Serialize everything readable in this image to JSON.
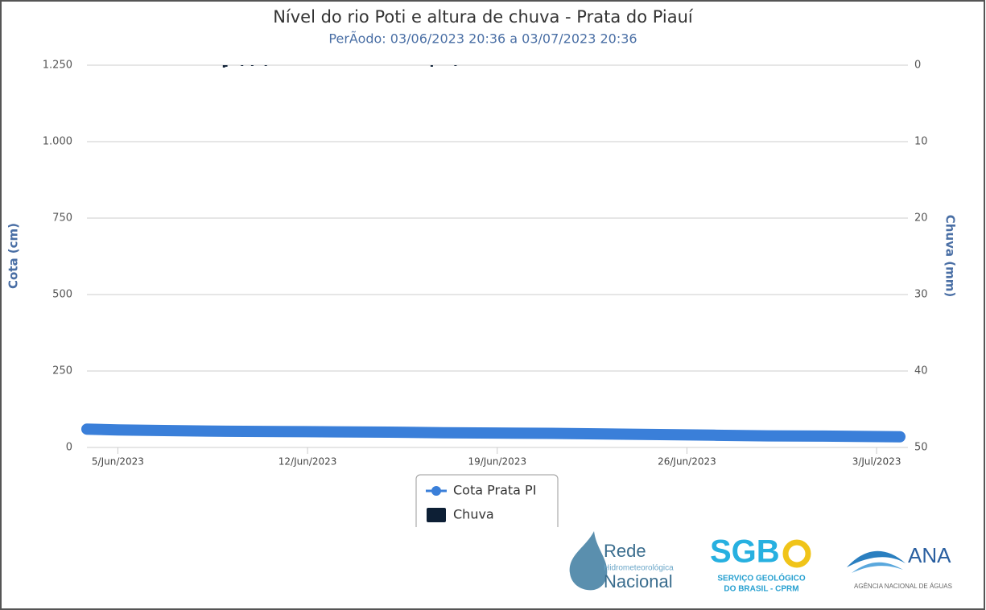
{
  "chart_data": {
    "type": "line-bar",
    "title": "Nível do rio Poti e altura de chuva - Prata do Piauí",
    "subtitle": "PerÃodo: 03/06/2023 20:36 a 03/07/2023 20:36",
    "ylabel": "Cota (cm)",
    "y2label": "Chuva (mm)",
    "xlim": [
      "2023-06-03T20:36",
      "2023-07-03T20:36"
    ],
    "xticks": [
      {
        "value": "2023-06-05T00:00",
        "label": "5/Jun/2023"
      },
      {
        "value": "2023-06-12T00:00",
        "label": "12/Jun/2023"
      },
      {
        "value": "2023-06-19T00:00",
        "label": "19/Jun/2023"
      },
      {
        "value": "2023-06-26T00:00",
        "label": "26/Jun/2023"
      },
      {
        "value": "2023-07-03T00:00",
        "label": "3/Jul/2023"
      }
    ],
    "ylim": [
      0,
      1250
    ],
    "yticks": [
      0,
      250,
      500,
      750,
      {
        "value": 1000,
        "label": "1.000"
      },
      {
        "value": 1250,
        "label": "1.250"
      }
    ],
    "y2lim": [
      0,
      50
    ],
    "y2ticks": [
      0,
      10,
      20,
      30,
      40,
      50
    ],
    "y2reverse": true,
    "grid": true,
    "series": [
      {
        "name": "Cota Prata PI",
        "color": "#3a7fd9",
        "kind": "line",
        "x": [
          "2023-06-03T20:36",
          "2023-06-05T00:00",
          "2023-06-07T00:00",
          "2023-06-09T00:00",
          "2023-06-11T00:00",
          "2023-06-13T00:00",
          "2023-06-15T00:00",
          "2023-06-17T00:00",
          "2023-06-19T00:00",
          "2023-06-21T00:00",
          "2023-06-23T00:00",
          "2023-06-25T00:00",
          "2023-06-27T00:00",
          "2023-06-29T00:00",
          "2023-07-01T00:00",
          "2023-07-03T20:36"
        ],
        "values": [
          60,
          57,
          55,
          53,
          52,
          51,
          50,
          48,
          47,
          46,
          44,
          42,
          40,
          38,
          37,
          35
        ]
      },
      {
        "name": "Chuva",
        "color": "#0d1f35",
        "kind": "bar",
        "axis": "y2",
        "x": [
          "2023-06-08T22:00",
          "2023-06-09T00:00",
          "2023-06-09T14:00",
          "2023-06-09T23:00",
          "2023-06-10T11:00",
          "2023-06-16T14:00",
          "2023-06-17T11:00"
        ],
        "values": [
          0.3,
          0.2,
          0.1,
          0.1,
          0.1,
          0.2,
          0.1
        ]
      }
    ]
  },
  "logos": [
    [
      "Rede",
      "Hidrometeorológica",
      "Nacional"
    ],
    [
      "SGB",
      "SERVIÇO GEOLÓGICO",
      "DO BRASIL - CPRM"
    ],
    [
      "ANA",
      "AGÊNCIA NACIONAL DE ÁGUAS"
    ]
  ]
}
